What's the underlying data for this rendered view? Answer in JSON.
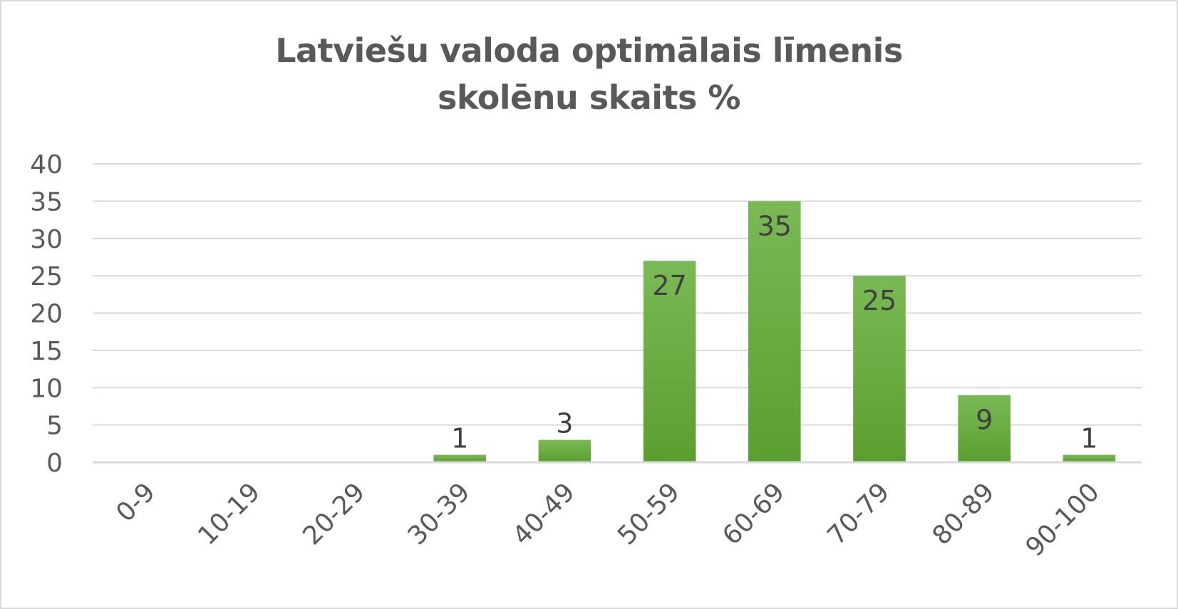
{
  "chart_data": {
    "type": "bar",
    "title_lines": [
      "Latviešu valoda optimālais līmenis",
      "skolēnu skaits %"
    ],
    "categories": [
      "0-9",
      "10-19",
      "20-29",
      "30-39",
      "40-49",
      "50-59",
      "60-69",
      "70-79",
      "80-89",
      "90-100"
    ],
    "values": [
      0,
      0,
      0,
      1,
      3,
      27,
      35,
      25,
      9,
      1
    ],
    "data_labels": [
      "",
      "",
      "",
      "1",
      "3",
      "27",
      "35",
      "25",
      "9",
      "1"
    ],
    "xlabel": "",
    "ylabel": "",
    "ylim": [
      0,
      40
    ],
    "yticks": [
      "0",
      "5",
      "10",
      "15",
      "20",
      "25",
      "30",
      "35",
      "40"
    ],
    "grid": true,
    "legend": "none",
    "colors": {
      "bar_top": "#7ab955",
      "bar_bottom": "#5b9e30",
      "grid": "#d9d9d9",
      "axis": "#d9d9d9",
      "text": "#595959"
    }
  }
}
